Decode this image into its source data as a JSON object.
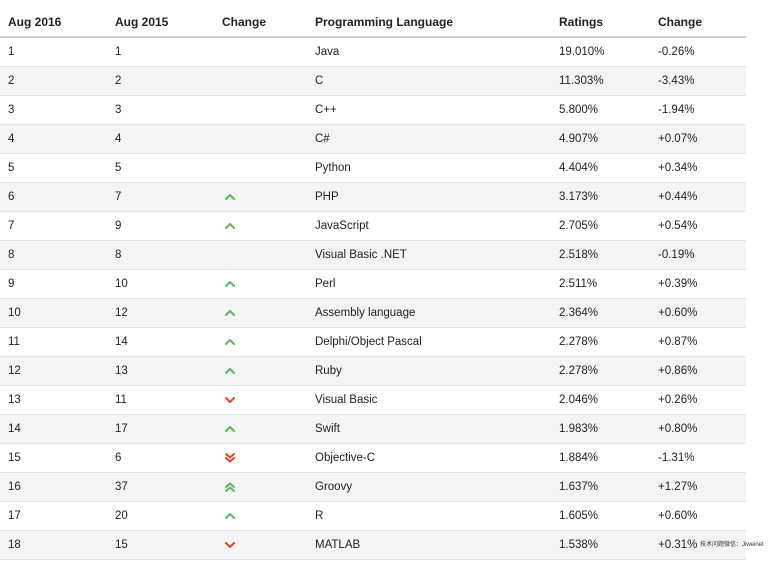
{
  "colors": {
    "up": "#5cb85c",
    "down": "#e8461f",
    "row_alt": "#f4f4f4",
    "border": "#e2e2e2"
  },
  "headers": {
    "current": "Aug 2016",
    "previous": "Aug 2015",
    "change_icon": "Change",
    "language": "Programming Language",
    "ratings": "Ratings",
    "change_pct": "Change"
  },
  "rows": [
    {
      "rank": "1",
      "prev": "1",
      "trend": "none",
      "language": "Java",
      "rating": "19.010%",
      "change": "-0.26%"
    },
    {
      "rank": "2",
      "prev": "2",
      "trend": "none",
      "language": "C",
      "rating": "11.303%",
      "change": "-3.43%"
    },
    {
      "rank": "3",
      "prev": "3",
      "trend": "none",
      "language": "C++",
      "rating": "5.800%",
      "change": "-1.94%"
    },
    {
      "rank": "4",
      "prev": "4",
      "trend": "none",
      "language": "C#",
      "rating": "4.907%",
      "change": "+0.07%"
    },
    {
      "rank": "5",
      "prev": "5",
      "trend": "none",
      "language": "Python",
      "rating": "4.404%",
      "change": "+0.34%"
    },
    {
      "rank": "6",
      "prev": "7",
      "trend": "up",
      "language": "PHP",
      "rating": "3.173%",
      "change": "+0.44%"
    },
    {
      "rank": "7",
      "prev": "9",
      "trend": "up",
      "language": "JavaScript",
      "rating": "2.705%",
      "change": "+0.54%"
    },
    {
      "rank": "8",
      "prev": "8",
      "trend": "none",
      "language": "Visual Basic .NET",
      "rating": "2.518%",
      "change": "-0.19%"
    },
    {
      "rank": "9",
      "prev": "10",
      "trend": "up",
      "language": "Perl",
      "rating": "2.511%",
      "change": "+0.39%"
    },
    {
      "rank": "10",
      "prev": "12",
      "trend": "up",
      "language": "Assembly language",
      "rating": "2.364%",
      "change": "+0.60%"
    },
    {
      "rank": "11",
      "prev": "14",
      "trend": "up",
      "language": "Delphi/Object Pascal",
      "rating": "2.278%",
      "change": "+0.87%"
    },
    {
      "rank": "12",
      "prev": "13",
      "trend": "up",
      "language": "Ruby",
      "rating": "2.278%",
      "change": "+0.86%"
    },
    {
      "rank": "13",
      "prev": "11",
      "trend": "down",
      "language": "Visual Basic",
      "rating": "2.046%",
      "change": "+0.26%"
    },
    {
      "rank": "14",
      "prev": "17",
      "trend": "up",
      "language": "Swift",
      "rating": "1.983%",
      "change": "+0.80%"
    },
    {
      "rank": "15",
      "prev": "6",
      "trend": "double-down",
      "language": "Objective-C",
      "rating": "1.884%",
      "change": "-1.31%"
    },
    {
      "rank": "16",
      "prev": "37",
      "trend": "double-up",
      "language": "Groovy",
      "rating": "1.637%",
      "change": "+1.27%"
    },
    {
      "rank": "17",
      "prev": "20",
      "trend": "up",
      "language": "R",
      "rating": "1.605%",
      "change": "+0.60%"
    },
    {
      "rank": "18",
      "prev": "15",
      "trend": "down",
      "language": "MATLAB",
      "rating": "1.538%",
      "change": "+0.31%"
    }
  ],
  "watermark": "技术问题微信：Jiweinet"
}
